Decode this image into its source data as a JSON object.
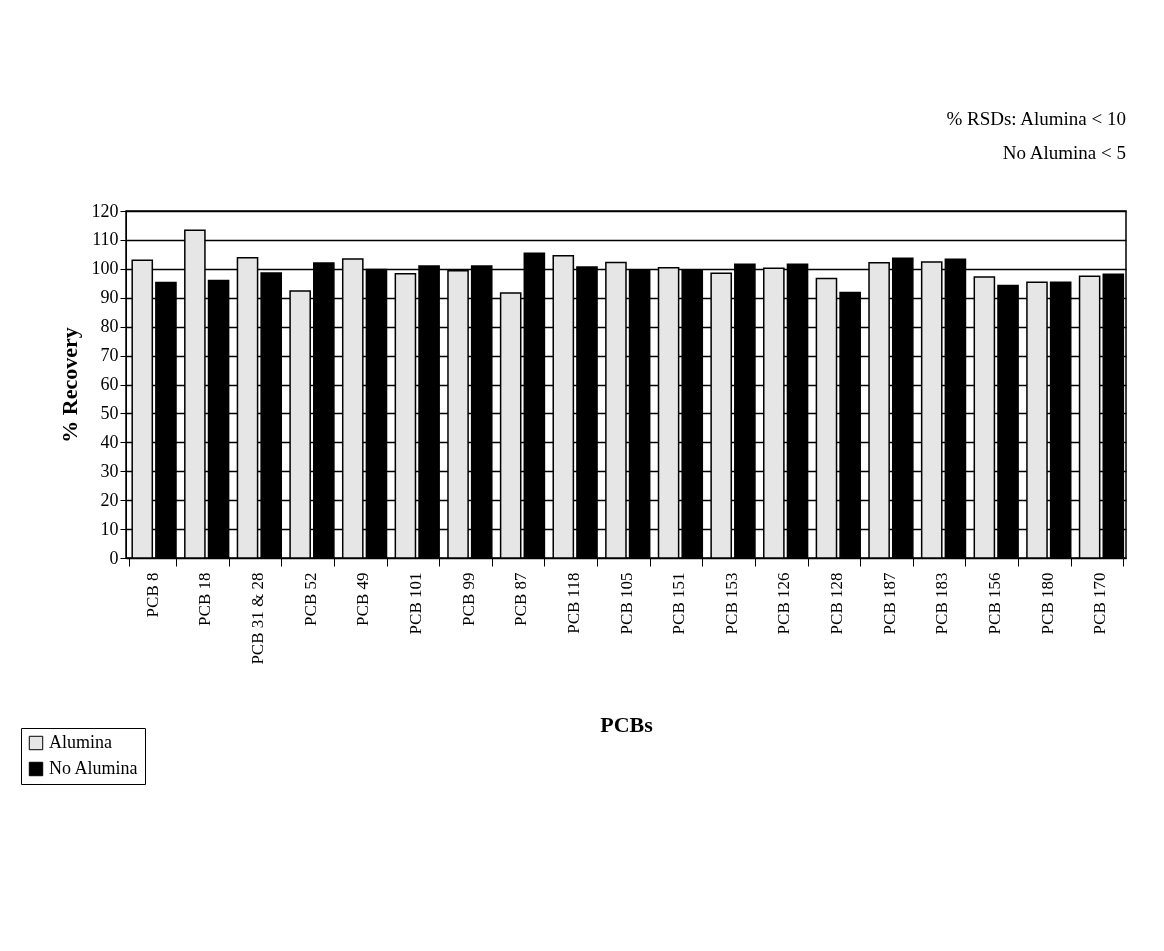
{
  "chart_data": {
    "type": "bar",
    "xlabel": "PCBs",
    "ylabel": "% Recovery",
    "categories": [
      "PCB 8",
      "PCB 18",
      "PCB 31 & 28",
      "PCB 52",
      "PCB 49",
      "PCB 101",
      "PCB 99",
      "PCB 87",
      "PCB 118",
      "PCB 105",
      "PCB 151",
      "PCB 153",
      "PCB 126",
      "PCB 128",
      "PCB 187",
      "PCB 183",
      "PCB 156",
      "PCB 180",
      "PCB 170"
    ],
    "series": [
      {
        "name": "Alumina",
        "color": "#e6e6e6",
        "values": [
          103,
          113.3,
          103.8,
          92.3,
          103.4,
          98.3,
          99.3,
          91.6,
          104.5,
          102.2,
          100.4,
          98.5,
          100.2,
          96.7,
          102.1,
          102.4,
          97.2,
          95.4,
          97.4
        ]
      },
      {
        "name": "No Alumina",
        "color": "#000000",
        "values": [
          95.3,
          96,
          98.6,
          102,
          99.8,
          101,
          101,
          105.4,
          100.6,
          99.3,
          99.3,
          101.6,
          101.6,
          91.8,
          103.7,
          103.3,
          94.2,
          95.4,
          98.1
        ]
      }
    ],
    "ylim": [
      0,
      120
    ],
    "yticks": [
      0,
      10,
      20,
      30,
      40,
      50,
      60,
      70,
      80,
      90,
      100,
      110,
      120
    ],
    "grid": "y",
    "legend": "bottom left",
    "annotations": [
      "% RSDs:  Alumina < 10",
      "No Alumina < 5"
    ]
  }
}
